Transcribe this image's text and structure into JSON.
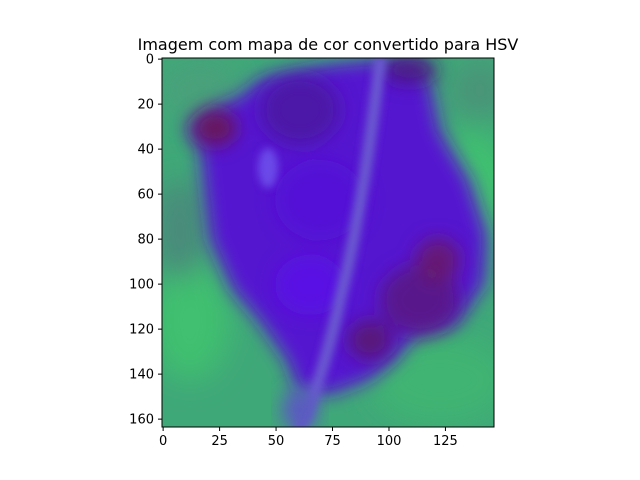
{
  "chart_data": {
    "type": "heatmap",
    "title": "Imagem com mapa de cor convertido para HSV",
    "xlabel": "",
    "ylabel": "",
    "image_size": {
      "width": 147,
      "height": 164
    },
    "xlim": [
      -0.5,
      146.5
    ],
    "ylim": [
      163.5,
      -0.5
    ],
    "y_inverted": true,
    "grid": false,
    "x_ticks": [
      0,
      25,
      50,
      75,
      100,
      125
    ],
    "x_tick_labels": [
      "0",
      "25",
      "50",
      "75",
      "100",
      "125"
    ],
    "y_ticks": [
      0,
      20,
      40,
      60,
      80,
      100,
      120,
      140,
      160
    ],
    "y_tick_labels": [
      "0",
      "20",
      "40",
      "60",
      "80",
      "100",
      "120",
      "140",
      "160"
    ],
    "colors": {
      "background": "#3fa878",
      "background_light": "#3fc070",
      "background_dark": "#4a8a7a",
      "blob_main": "#5a1ad8",
      "blob_dark": "#4a1a9a",
      "blob_dark_red": "#6a1a50",
      "highlight": "#6a4ae8",
      "stem": "#6a5ad0",
      "frame": "#000000"
    }
  }
}
